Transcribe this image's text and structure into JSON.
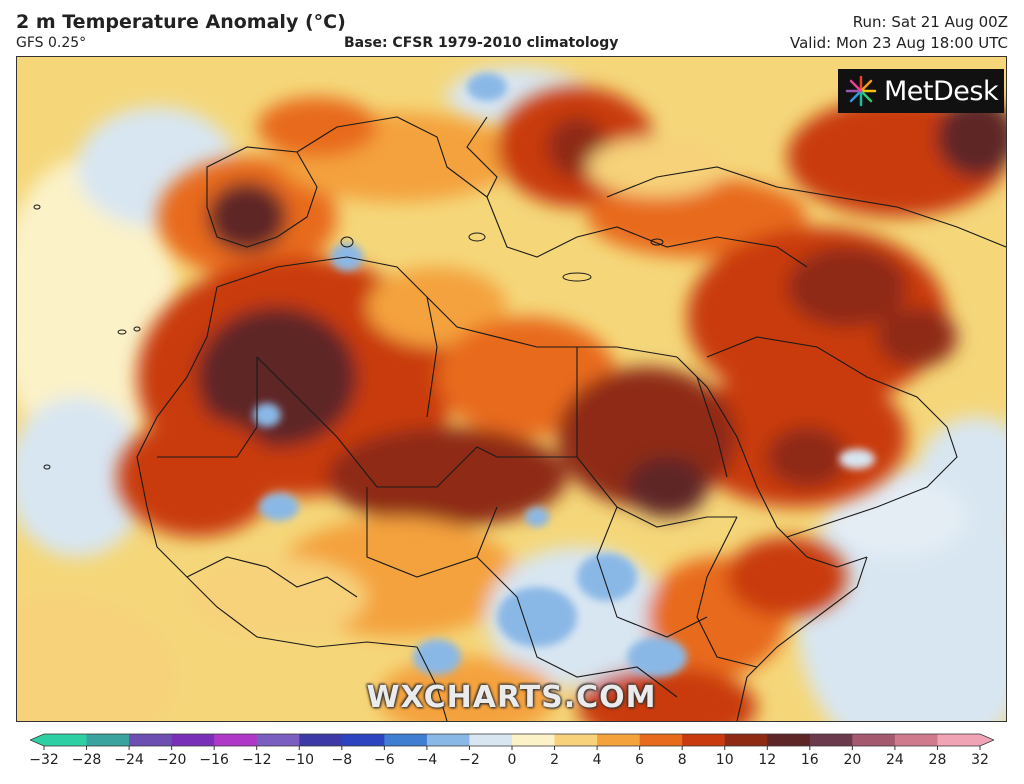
{
  "header": {
    "title": "2 m Temperature Anomaly (°C)",
    "model": "GFS 0.25°",
    "base": "Base: CFSR 1979-2010 climatology",
    "run": "Run: Sat 21 Aug 00Z",
    "valid": "Valid: Mon 23 Aug 18:00 UTC"
  },
  "brand": {
    "name": "MetDesk",
    "icon": "starburst-logo-icon"
  },
  "watermark": "WXCHARTS.COM",
  "colorbar": {
    "ticks": [
      "−32",
      "−28",
      "−24",
      "−20",
      "−16",
      "−12",
      "−10",
      "−8",
      "−6",
      "−4",
      "−2",
      "0",
      "2",
      "4",
      "6",
      "8",
      "10",
      "12",
      "16",
      "20",
      "24",
      "28",
      "32"
    ],
    "colors": [
      "#2ecfa3",
      "#3aa3a0",
      "#6c4fb0",
      "#7a2fb8",
      "#b038c8",
      "#7b5fc0",
      "#3d3aa8",
      "#2c44c0",
      "#3f7ed0",
      "#8ab8e6",
      "#d8e6f2",
      "#fbf2c8",
      "#f7d27a",
      "#f4a23c",
      "#e86a1c",
      "#c93a0e",
      "#8e2a14",
      "#5e2626",
      "#6b3a4c",
      "#a4596e",
      "#d07a8e",
      "#f1a3b6"
    ],
    "units": "°C"
  },
  "colors": {
    "ocean_warm": "#f5d77a",
    "ocean_cool": "#d8e6f2",
    "strong_heat": "#8e2a14",
    "extreme_heat": "#5e2626",
    "cool_anomaly": "#8ab8e6"
  }
}
